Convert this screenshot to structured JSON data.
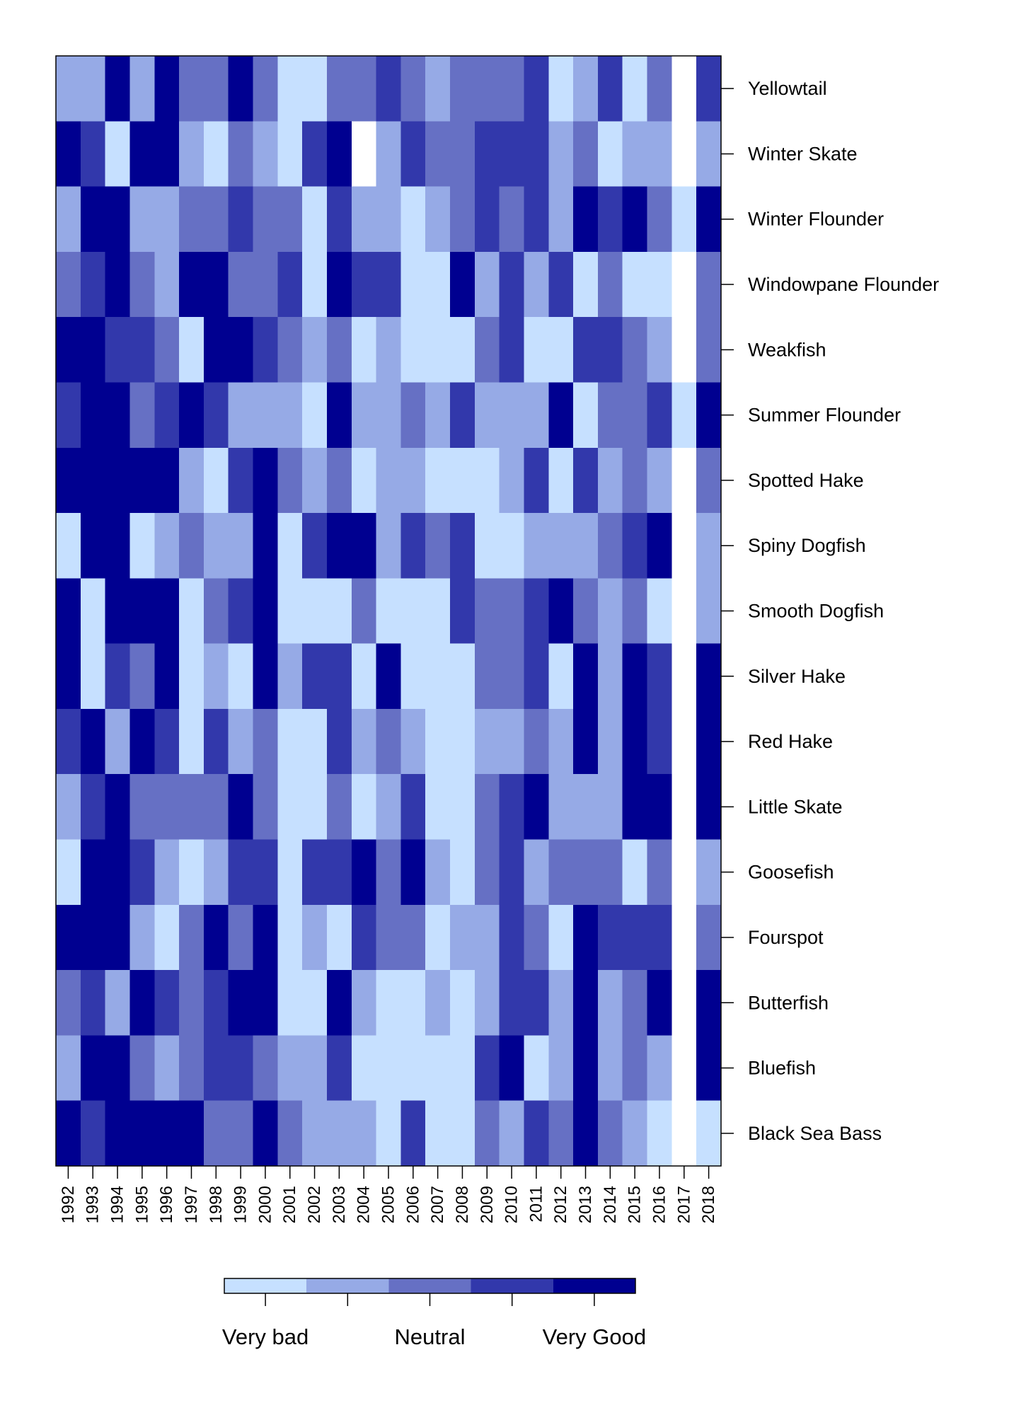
{
  "chart_data": {
    "type": "heatmap",
    "title": "",
    "xlabel": "",
    "ylabel": "",
    "x": [
      "1992",
      "1993",
      "1994",
      "1995",
      "1996",
      "1997",
      "1998",
      "1999",
      "2000",
      "2001",
      "2002",
      "2003",
      "2004",
      "2005",
      "2006",
      "2007",
      "2008",
      "2009",
      "2010",
      "2011",
      "2012",
      "2013",
      "2014",
      "2015",
      "2016",
      "2017",
      "2018"
    ],
    "y": [
      "Yellowtail",
      "Winter Skate",
      "Winter Flounder",
      "Windowpane Flounder",
      "Weakfish",
      "Summer Flounder",
      "Spotted Hake",
      "Spiny Dogfish",
      "Smooth Dogfish",
      "Silver Hake",
      "Red Hake",
      "Little Skate",
      "Goosefish",
      "Fourspot",
      "Butterfish",
      "Bluefish",
      "Black Sea Bass"
    ],
    "scale": {
      "min": 1,
      "max": 5,
      "missing": null
    },
    "legend": {
      "placement": "bottom",
      "labels": [
        "Very bad",
        "Neutral",
        "Very Good"
      ],
      "label_levels": [
        1,
        3,
        5
      ]
    },
    "colors": [
      "#c6e0ff",
      "#96aae6",
      "#6670c4",
      "#3238ab",
      "#000090"
    ],
    "missing_color": "#ffffff",
    "values": [
      [
        2,
        2,
        5,
        2,
        5,
        3,
        3,
        5,
        3,
        1,
        1,
        3,
        3,
        4,
        3,
        2,
        3,
        3,
        3,
        4,
        1,
        2,
        4,
        1,
        3,
        null,
        4
      ],
      [
        5,
        4,
        1,
        5,
        5,
        2,
        1,
        3,
        2,
        1,
        4,
        5,
        null,
        2,
        4,
        3,
        3,
        4,
        4,
        4,
        2,
        3,
        1,
        2,
        2,
        null,
        2
      ],
      [
        2,
        5,
        5,
        2,
        2,
        3,
        3,
        4,
        3,
        3,
        1,
        4,
        2,
        2,
        1,
        2,
        3,
        4,
        3,
        4,
        2,
        5,
        4,
        5,
        3,
        1,
        5
      ],
      [
        3,
        4,
        5,
        3,
        2,
        5,
        5,
        3,
        3,
        4,
        1,
        5,
        4,
        4,
        1,
        1,
        5,
        2,
        4,
        2,
        4,
        1,
        3,
        1,
        1,
        null,
        3
      ],
      [
        5,
        5,
        4,
        4,
        3,
        1,
        5,
        5,
        4,
        3,
        2,
        3,
        1,
        2,
        1,
        1,
        1,
        3,
        4,
        1,
        1,
        4,
        4,
        3,
        2,
        null,
        3
      ],
      [
        4,
        5,
        5,
        3,
        4,
        5,
        4,
        2,
        2,
        2,
        1,
        5,
        2,
        2,
        3,
        2,
        4,
        2,
        2,
        2,
        5,
        1,
        3,
        3,
        4,
        1,
        5
      ],
      [
        5,
        5,
        5,
        5,
        5,
        2,
        1,
        4,
        5,
        3,
        2,
        3,
        1,
        2,
        2,
        1,
        1,
        1,
        2,
        4,
        1,
        4,
        2,
        3,
        2,
        null,
        3
      ],
      [
        1,
        5,
        5,
        1,
        2,
        3,
        2,
        2,
        5,
        1,
        4,
        5,
        5,
        2,
        4,
        3,
        4,
        1,
        1,
        2,
        2,
        2,
        3,
        4,
        5,
        null,
        2
      ],
      [
        5,
        1,
        5,
        5,
        5,
        1,
        3,
        4,
        5,
        1,
        1,
        1,
        3,
        1,
        1,
        1,
        4,
        3,
        3,
        4,
        5,
        3,
        2,
        3,
        1,
        null,
        2
      ],
      [
        5,
        1,
        4,
        3,
        5,
        1,
        2,
        1,
        5,
        2,
        4,
        4,
        1,
        5,
        1,
        1,
        1,
        3,
        3,
        4,
        1,
        5,
        2,
        5,
        4,
        null,
        5
      ],
      [
        4,
        5,
        2,
        5,
        4,
        1,
        4,
        2,
        3,
        1,
        1,
        4,
        2,
        3,
        2,
        1,
        1,
        2,
        2,
        3,
        2,
        5,
        2,
        5,
        4,
        null,
        5
      ],
      [
        2,
        4,
        5,
        3,
        3,
        3,
        3,
        5,
        3,
        1,
        1,
        3,
        1,
        2,
        4,
        1,
        1,
        3,
        4,
        5,
        2,
        2,
        2,
        5,
        5,
        null,
        5
      ],
      [
        1,
        5,
        5,
        4,
        2,
        1,
        2,
        4,
        4,
        1,
        4,
        4,
        5,
        3,
        5,
        2,
        1,
        3,
        4,
        2,
        3,
        3,
        3,
        1,
        3,
        null,
        2
      ],
      [
        5,
        5,
        5,
        2,
        1,
        3,
        5,
        3,
        5,
        1,
        2,
        1,
        4,
        3,
        3,
        1,
        2,
        2,
        4,
        3,
        1,
        5,
        4,
        4,
        4,
        null,
        3
      ],
      [
        3,
        4,
        2,
        5,
        4,
        3,
        4,
        5,
        5,
        1,
        1,
        5,
        2,
        1,
        1,
        2,
        1,
        2,
        4,
        4,
        2,
        5,
        2,
        3,
        5,
        null,
        5
      ],
      [
        2,
        5,
        5,
        3,
        2,
        3,
        4,
        4,
        3,
        2,
        2,
        4,
        1,
        1,
        1,
        1,
        1,
        4,
        5,
        1,
        2,
        5,
        2,
        3,
        2,
        null,
        5
      ],
      [
        5,
        4,
        5,
        5,
        5,
        5,
        3,
        3,
        5,
        3,
        2,
        2,
        2,
        1,
        4,
        1,
        1,
        3,
        2,
        4,
        3,
        5,
        3,
        2,
        1,
        null,
        1
      ]
    ]
  }
}
